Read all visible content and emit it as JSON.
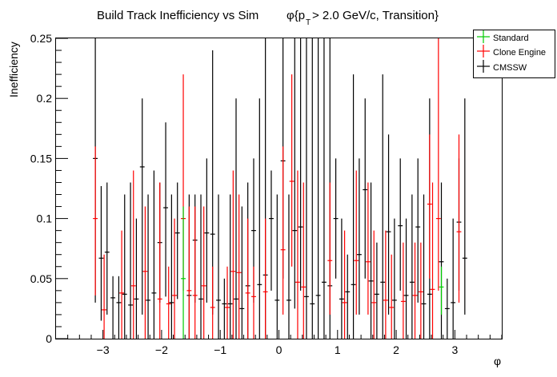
{
  "chart_data": {
    "type": "scatter",
    "title": "Build Track Inefficiency vs Sim",
    "title_phi": "φ{p",
    "title_sub": "T",
    "title_rest": " > 2.0 GeV/c, Transition}",
    "xlabel": "φ",
    "ylabel": "Inefficiency",
    "xlim": [
      -3.8,
      3.8
    ],
    "ylim": [
      0,
      0.25
    ],
    "xticks": [
      -3,
      -2,
      -1,
      0,
      1,
      2,
      3
    ],
    "xtick_labels": [
      "−3",
      "−2",
      "−1",
      "0",
      "1",
      "2",
      "3"
    ],
    "yticks": [
      0,
      0.05,
      0.1,
      0.15,
      0.2,
      0.25
    ],
    "ytick_labels": [
      "0",
      "0.05",
      "0.1",
      "0.15",
      "0.2",
      "0.25"
    ],
    "bin_half_width": 0.04,
    "legend": {
      "placement": "top-right",
      "entries": [
        "Standard",
        "Clone Engine",
        "CMSSW"
      ]
    },
    "colors": {
      "Standard": "#00cc00",
      "Clone Engine": "#ff0000",
      "CMSSW": "#000000"
    },
    "series": [
      {
        "name": "CMSSW",
        "points": [
          [
            -3.13,
            0.15,
            0.03,
            0.25
          ],
          [
            -3.03,
            0.067,
            0.015,
            0.127
          ],
          [
            -2.93,
            0.072,
            0.02,
            0.13
          ],
          [
            -2.83,
            0.034,
            0,
            0.052
          ],
          [
            -2.73,
            0.03,
            0,
            0.052
          ],
          [
            -2.63,
            0.037,
            0,
            0.12
          ],
          [
            -2.53,
            0.028,
            0,
            0.13
          ],
          [
            -2.43,
            0.033,
            0,
            0.1
          ],
          [
            -2.33,
            0.143,
            0.02,
            0.2
          ],
          [
            -2.23,
            0.032,
            0,
            0.12
          ],
          [
            -2.13,
            0.038,
            0,
            0.14
          ],
          [
            -2.03,
            0.08,
            0.03,
            0.13
          ],
          [
            -1.93,
            0.109,
            0.035,
            0.18
          ],
          [
            -1.83,
            0.03,
            0,
            0.12
          ],
          [
            -1.73,
            0.088,
            0.033,
            0.13
          ],
          [
            -1.53,
            0.036,
            0,
            0.12
          ],
          [
            -1.43,
            0.082,
            0.03,
            0.12
          ],
          [
            -1.33,
            0.033,
            0,
            0.12
          ],
          [
            -1.23,
            0.088,
            0.03,
            0.15
          ],
          [
            -1.13,
            0.087,
            0.02,
            0.24
          ],
          [
            -1.03,
            0.032,
            0,
            0.12
          ],
          [
            -0.93,
            0.029,
            0,
            0.05
          ],
          [
            -0.83,
            0.029,
            0,
            0.12
          ],
          [
            -0.73,
            0.033,
            0,
            0.2
          ],
          [
            -0.63,
            0.025,
            0,
            0.11
          ],
          [
            -0.53,
            0.044,
            0,
            0.13
          ],
          [
            -0.43,
            0.09,
            0.03,
            0.15
          ],
          [
            -0.33,
            0.045,
            0,
            0.2
          ],
          [
            -0.23,
            0.053,
            0,
            0.25
          ],
          [
            -0.13,
            0.1,
            0.04,
            0.14
          ],
          [
            -0.03,
            0.032,
            0,
            0.12
          ],
          [
            0.07,
            0.148,
            0.05,
            0.25
          ],
          [
            0.17,
            0.032,
            0,
            0.12
          ],
          [
            0.27,
            0.09,
            0.025,
            0.25
          ],
          [
            0.37,
            0.093,
            0.04,
            0.25
          ],
          [
            0.47,
            0.035,
            0,
            0.25
          ],
          [
            0.57,
            0.029,
            0,
            0.25
          ],
          [
            0.67,
            0.036,
            0,
            0.25
          ],
          [
            0.77,
            0.047,
            0,
            0.25
          ],
          [
            0.87,
            0.044,
            0,
            0.25
          ],
          [
            0.97,
            0.1,
            0.05,
            0.15
          ],
          [
            1.07,
            0.033,
            0,
            0.1
          ],
          [
            1.17,
            0.039,
            0,
            0.07
          ],
          [
            1.27,
            0.045,
            0,
            0.22
          ],
          [
            1.37,
            0.07,
            0.02,
            0.15
          ],
          [
            1.47,
            0.124,
            0.05,
            0.2
          ],
          [
            1.57,
            0.048,
            0,
            0.13
          ],
          [
            1.67,
            0.037,
            0,
            0.08
          ],
          [
            1.77,
            0.047,
            0,
            0.22
          ],
          [
            1.87,
            0.089,
            0.02,
            0.17
          ],
          [
            1.97,
            0.032,
            0,
            0.1
          ],
          [
            2.07,
            0.094,
            0.04,
            0.15
          ],
          [
            2.17,
            0.036,
            0,
            0.1
          ],
          [
            2.27,
            0.047,
            0,
            0.12
          ],
          [
            2.37,
            0.093,
            0.03,
            0.15
          ],
          [
            2.47,
            0.029,
            0,
            0.12
          ],
          [
            2.57,
            0.037,
            0,
            0.2
          ],
          [
            2.77,
            0.064,
            0,
            0.13
          ],
          [
            2.87,
            0.025,
            0,
            0.05
          ],
          [
            2.97,
            0.03,
            0,
            0.1
          ],
          [
            3.07,
            0.097,
            0.04,
            0.15
          ],
          [
            3.17,
            0.067,
            0.02,
            0.2
          ]
        ]
      },
      {
        "name": "Clone Engine",
        "points": [
          [
            -3.13,
            0.1,
            0.036,
            0.16
          ],
          [
            -2.98,
            0.024,
            0,
            0.07
          ],
          [
            -2.68,
            0.038,
            0,
            0.09
          ],
          [
            -2.48,
            0.044,
            0,
            0.14
          ],
          [
            -2.28,
            0.056,
            0,
            0.11
          ],
          [
            -2.03,
            0.033,
            0,
            0.13
          ],
          [
            -1.88,
            0.029,
            0,
            0.06
          ],
          [
            -1.78,
            0.036,
            0,
            0.1
          ],
          [
            -1.63,
            0.1,
            0.04,
            0.22
          ],
          [
            -1.53,
            0.04,
            0,
            0.11
          ],
          [
            -1.43,
            0.036,
            0,
            0.11
          ],
          [
            -1.28,
            0.044,
            0,
            0.11
          ],
          [
            -1.13,
            0.026,
            0,
            0.06
          ],
          [
            -0.88,
            0.026,
            0,
            0.06
          ],
          [
            -0.78,
            0.056,
            0,
            0.14
          ],
          [
            -0.68,
            0.055,
            0,
            0.12
          ],
          [
            -0.53,
            0.038,
            0,
            0.1
          ],
          [
            -0.43,
            0.035,
            0,
            0.06
          ],
          [
            -0.23,
            0.039,
            0,
            0.1
          ],
          [
            0.07,
            0.074,
            0.02,
            0.16
          ],
          [
            0.22,
            0.131,
            0.06,
            0.22
          ],
          [
            0.32,
            0.047,
            0,
            0.14
          ],
          [
            0.42,
            0.043,
            0,
            0.13
          ],
          [
            0.87,
            0.065,
            0.02,
            0.13
          ],
          [
            1.12,
            0.03,
            0,
            0.09
          ],
          [
            1.32,
            0.065,
            0.02,
            0.14
          ],
          [
            1.52,
            0.064,
            0.02,
            0.13
          ],
          [
            1.62,
            0.03,
            0,
            0.09
          ],
          [
            1.82,
            0.032,
            0,
            0.09
          ],
          [
            1.92,
            0.026,
            0,
            0.07
          ],
          [
            2.12,
            0.031,
            0,
            0.08
          ],
          [
            2.32,
            0.036,
            0,
            0.08
          ],
          [
            2.42,
            0.039,
            0,
            0.08
          ],
          [
            2.57,
            0.112,
            0.05,
            0.17
          ],
          [
            2.62,
            0.041,
            0,
            0.13
          ],
          [
            2.72,
            0.1,
            0.04,
            0.25
          ],
          [
            3.07,
            0.089,
            0.03,
            0.17
          ]
        ]
      },
      {
        "name": "Standard",
        "points": [
          [
            -1.63,
            0.05,
            0,
            0.11
          ],
          [
            2.77,
            0.043,
            0.02,
            0.06
          ]
        ]
      }
    ]
  }
}
